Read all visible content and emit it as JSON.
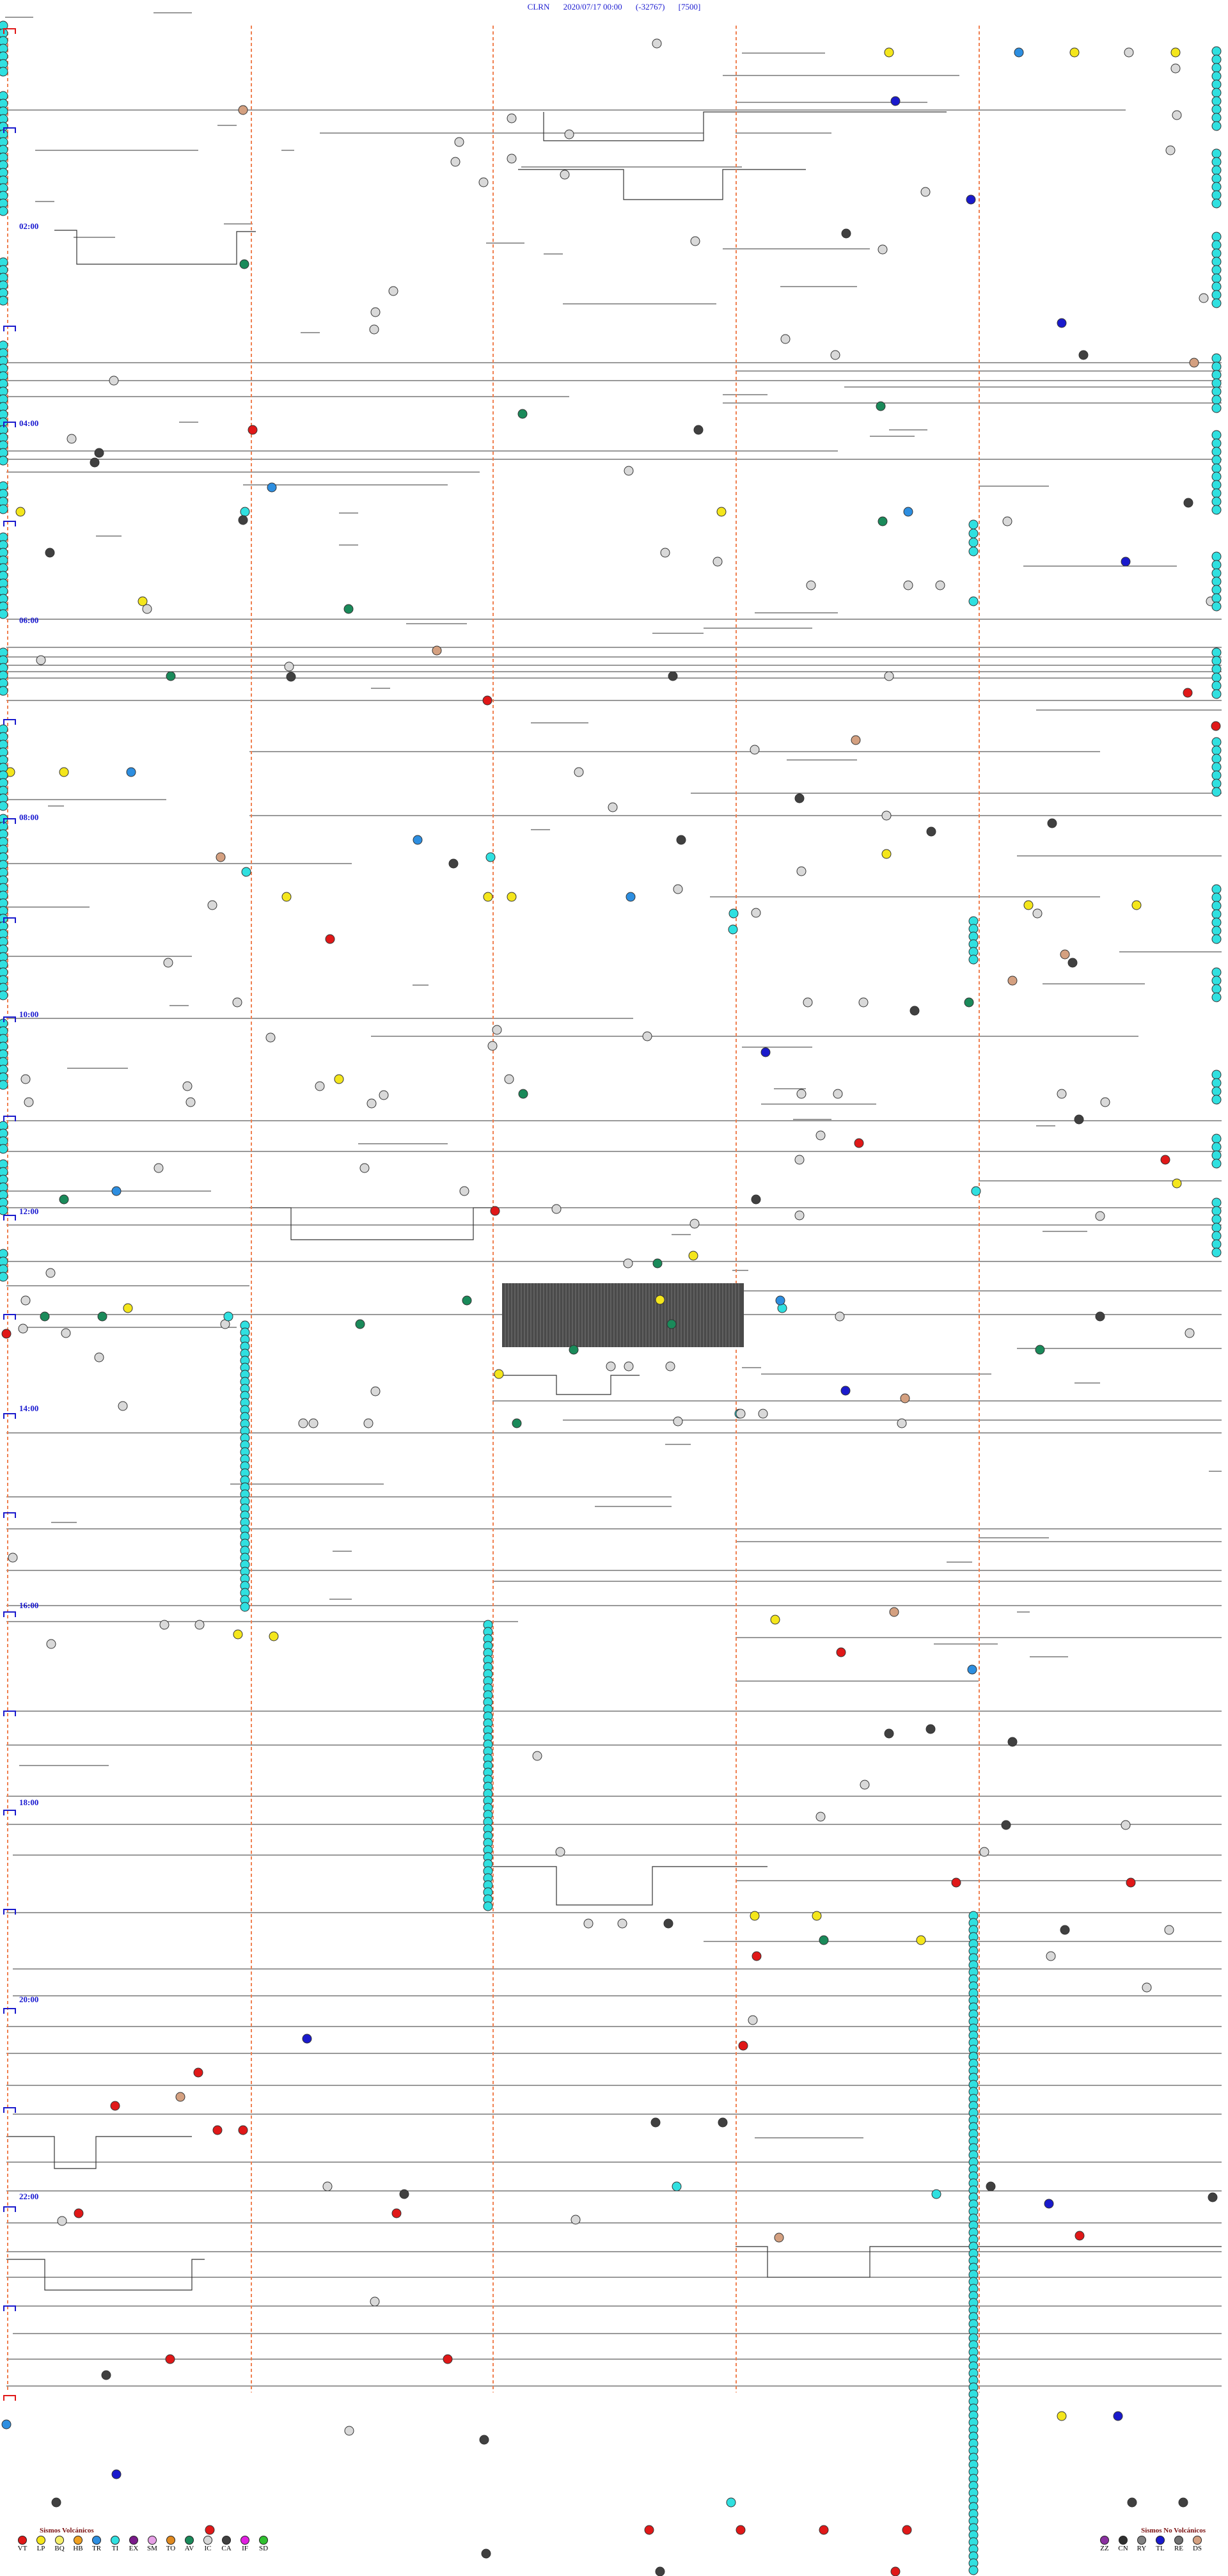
{
  "header": {
    "station": "CLRN",
    "datetime": "2020/07/17 00:00",
    "count": "(-32767)",
    "scale": "[7500]"
  },
  "time_labels": [
    "02:00",
    "04:00",
    "06:00",
    "08:00",
    "10:00",
    "12:00",
    "14:00",
    "16:00",
    "18:00",
    "20:00",
    "22:00"
  ],
  "legend_volcanic": {
    "title": "Sismos Volcánicos",
    "items": [
      {
        "code": "VT",
        "color": "#e01818"
      },
      {
        "code": "LP",
        "color": "#f4e61c"
      },
      {
        "code": "BQ",
        "color": "#f6f06a"
      },
      {
        "code": "HB",
        "color": "#f0a020"
      },
      {
        "code": "TR",
        "color": "#2d8ee0"
      },
      {
        "code": "TI",
        "color": "#30e0e0"
      },
      {
        "code": "EX",
        "color": "#7a1a8a"
      },
      {
        "code": "SM",
        "color": "#e6a0e6"
      },
      {
        "code": "TO",
        "color": "#e08a20"
      },
      {
        "code": "AV",
        "color": "#1a8a5a"
      },
      {
        "code": "IC",
        "color": "#d8d8d8"
      },
      {
        "code": "CA",
        "color": "#404040"
      },
      {
        "code": "IF",
        "color": "#e020e0"
      },
      {
        "code": "SD",
        "color": "#30c030"
      }
    ]
  },
  "legend_nonvolcanic": {
    "title": "Sismos No Volcánicos",
    "items": [
      {
        "code": "ZZ",
        "color": "#8a30a0"
      },
      {
        "code": "CN",
        "color": "#303030"
      },
      {
        "code": "RY",
        "color": "#808080"
      },
      {
        "code": "TL",
        "color": "#1a1acc"
      },
      {
        "code": "RE",
        "color": "#707070"
      },
      {
        "code": "DS",
        "color": "#d4a080"
      }
    ]
  }
}
